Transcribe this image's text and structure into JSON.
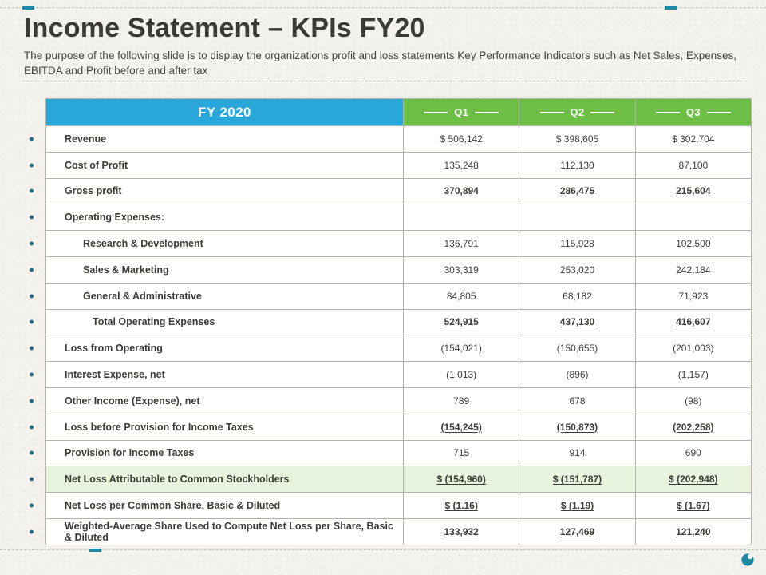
{
  "slide": {
    "title": "Income Statement – KPIs FY20",
    "subtitle": "The purpose of the following slide is to display the organizations profit and loss statements Key Performance Indicators such as Net Sales, Expenses, EBITDA and Profit before and after tax"
  },
  "colors": {
    "header-blue": "#2AA7DA",
    "header-green": "#6CBE45",
    "highlight-row": "#E8F3DE",
    "accent-teal": "#1E89A4",
    "dot": "#2C6E86"
  },
  "table": {
    "header": {
      "label": "FY 2020",
      "columns": [
        "Q1",
        "Q2",
        "Q3"
      ]
    },
    "rows": [
      {
        "label": "Revenue",
        "values": [
          "$ 506,142",
          "$ 398,605",
          "$ 302,704"
        ],
        "indent": 0,
        "emphasis": false,
        "highlight": false
      },
      {
        "label": "Cost of Profit",
        "values": [
          "135,248",
          "112,130",
          "87,100"
        ],
        "indent": 0,
        "emphasis": false,
        "highlight": false
      },
      {
        "label": "Gross profit",
        "values": [
          "370,894",
          "286,475",
          "215,604"
        ],
        "indent": 0,
        "emphasis": true,
        "highlight": false
      },
      {
        "label": "Operating Expenses:",
        "values": [
          "",
          "",
          ""
        ],
        "indent": 0,
        "emphasis": false,
        "highlight": false
      },
      {
        "label": "Research & Development",
        "values": [
          "136,791",
          "115,928",
          "102,500"
        ],
        "indent": 1,
        "emphasis": false,
        "highlight": false
      },
      {
        "label": "Sales & Marketing",
        "values": [
          "303,319",
          "253,020",
          "242,184"
        ],
        "indent": 1,
        "emphasis": false,
        "highlight": false
      },
      {
        "label": "General & Administrative",
        "values": [
          "84,805",
          "68,182",
          "71,923"
        ],
        "indent": 1,
        "emphasis": false,
        "highlight": false
      },
      {
        "label": "Total Operating Expenses",
        "values": [
          "524,915",
          "437,130",
          "416,607"
        ],
        "indent": 2,
        "emphasis": true,
        "highlight": false
      },
      {
        "label": "Loss from Operating",
        "values": [
          "(154,021)",
          "(150,655)",
          "(201,003)"
        ],
        "indent": 0,
        "emphasis": false,
        "highlight": false
      },
      {
        "label": "Interest Expense, net",
        "values": [
          "(1,013)",
          "(896)",
          "(1,157)"
        ],
        "indent": 0,
        "emphasis": false,
        "highlight": false
      },
      {
        "label": "Other Income (Expense), net",
        "values": [
          "789",
          "678",
          "(98)"
        ],
        "indent": 0,
        "emphasis": false,
        "highlight": false
      },
      {
        "label": "Loss before Provision for Income Taxes",
        "values": [
          "(154,245)",
          "(150,873)",
          "(202,258)"
        ],
        "indent": 0,
        "emphasis": true,
        "highlight": false
      },
      {
        "label": "Provision for Income Taxes",
        "values": [
          "715",
          "914",
          "690"
        ],
        "indent": 0,
        "emphasis": false,
        "highlight": false
      },
      {
        "label": "Net Loss Attributable to Common Stockholders",
        "values": [
          "$ (154,960)",
          "$ (151,787)",
          "$ (202,948)"
        ],
        "indent": 0,
        "emphasis": true,
        "highlight": true
      },
      {
        "label": "Net Loss per Common Share, Basic & Diluted",
        "values": [
          "$ (1.16)",
          "$ (1.19)",
          "$ (1.67)"
        ],
        "indent": 0,
        "emphasis": true,
        "highlight": false
      },
      {
        "label": "Weighted-Average Share Used to Compute Net Loss per Share, Basic & Diluted",
        "values": [
          "133,932",
          "127,469",
          "121,240"
        ],
        "indent": 0,
        "emphasis": true,
        "highlight": false
      }
    ]
  }
}
